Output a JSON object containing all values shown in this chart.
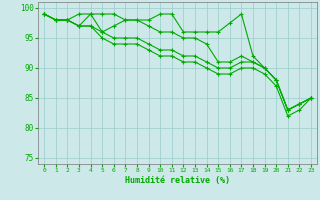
{
  "xlabel": "Humidité relative (%)",
  "xlim": [
    -0.5,
    23.5
  ],
  "ylim": [
    74,
    101
  ],
  "yticks": [
    75,
    80,
    85,
    90,
    95,
    100
  ],
  "xticks": [
    0,
    1,
    2,
    3,
    4,
    5,
    6,
    7,
    8,
    9,
    10,
    11,
    12,
    13,
    14,
    15,
    16,
    17,
    18,
    19,
    20,
    21,
    22,
    23
  ],
  "bg_color": "#cce8e8",
  "grid_color": "#99cccc",
  "line_color": "#00aa00",
  "marker": "+",
  "linewidth": 0.8,
  "markersize": 3,
  "series": [
    [
      99,
      98,
      98,
      99,
      99,
      99,
      99,
      98,
      98,
      98,
      99,
      99,
      96,
      96,
      96,
      96,
      97.5,
      99,
      92,
      90,
      88,
      83,
      84,
      85
    ],
    [
      99,
      98,
      98,
      97,
      99,
      96,
      97,
      98,
      98,
      97,
      96,
      96,
      95,
      95,
      94,
      91,
      91,
      92,
      91,
      90,
      88,
      83,
      84,
      85
    ],
    [
      99,
      98,
      98,
      97,
      97,
      96,
      95,
      95,
      95,
      94,
      93,
      93,
      92,
      92,
      91,
      90,
      90,
      91,
      91,
      90,
      88,
      83,
      84,
      85
    ],
    [
      99,
      98,
      98,
      97,
      97,
      95,
      94,
      94,
      94,
      93,
      92,
      92,
      91,
      91,
      90,
      89,
      89,
      90,
      90,
      89,
      87,
      82,
      83,
      85
    ]
  ]
}
